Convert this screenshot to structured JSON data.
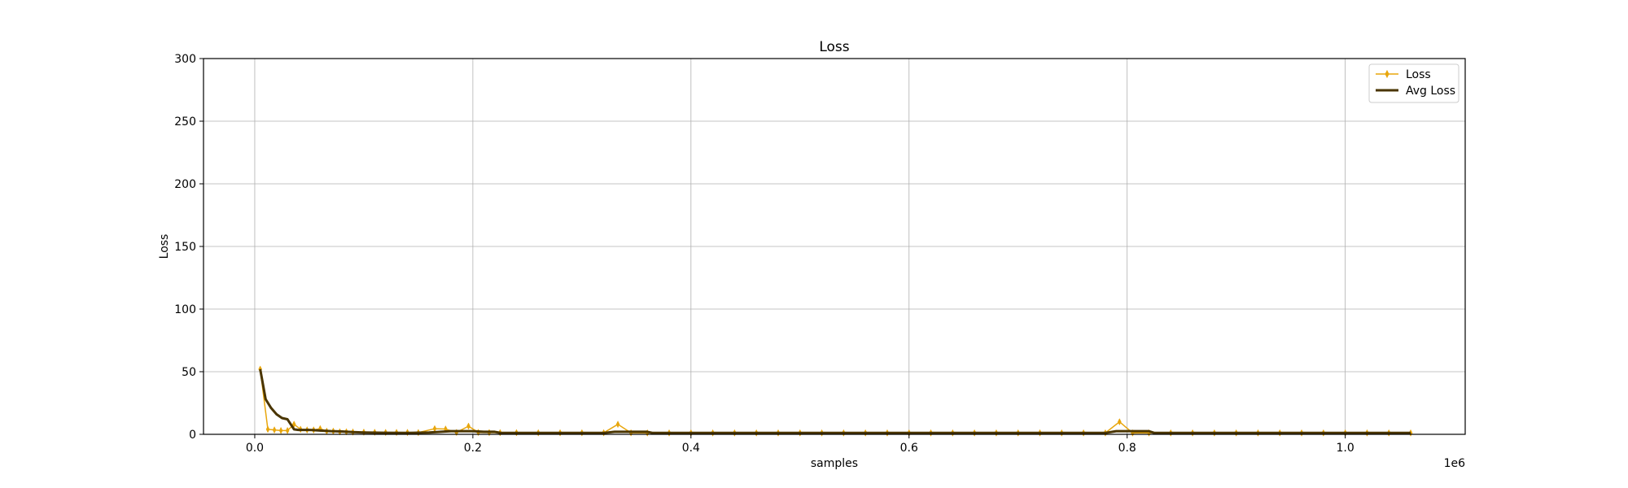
{
  "chart_data": {
    "type": "line",
    "title": "Loss",
    "xlabel": "samples",
    "ylabel": "Loss",
    "x_offset_label": "1e6",
    "xlim": [
      -0.047,
      1.11
    ],
    "ylim": [
      0,
      300
    ],
    "x_ticks": [
      0.0,
      0.2,
      0.4,
      0.6,
      0.8,
      1.0
    ],
    "x_tick_labels": [
      "0.0",
      "0.2",
      "0.4",
      "0.6",
      "0.8",
      "1.0"
    ],
    "y_ticks": [
      0,
      50,
      100,
      150,
      200,
      250,
      300
    ],
    "y_tick_labels": [
      "0",
      "50",
      "100",
      "150",
      "200",
      "250",
      "300"
    ],
    "grid": true,
    "legend_position": "top-right",
    "legend": [
      "Loss",
      "Avg Loss"
    ],
    "colors": {
      "Loss": "#e8a60c",
      "Avg Loss": "#4a3500"
    },
    "series": [
      {
        "name": "Loss",
        "marker": "thin-diamond",
        "x": [
          0.005,
          0.012,
          0.018,
          0.024,
          0.03,
          0.036,
          0.042,
          0.048,
          0.054,
          0.06,
          0.066,
          0.072,
          0.078,
          0.084,
          0.09,
          0.1,
          0.11,
          0.12,
          0.13,
          0.14,
          0.15,
          0.165,
          0.175,
          0.185,
          0.196,
          0.205,
          0.215,
          0.225,
          0.24,
          0.26,
          0.28,
          0.3,
          0.32,
          0.333,
          0.345,
          0.36,
          0.38,
          0.4,
          0.42,
          0.44,
          0.46,
          0.48,
          0.5,
          0.52,
          0.54,
          0.56,
          0.58,
          0.6,
          0.62,
          0.64,
          0.66,
          0.68,
          0.7,
          0.72,
          0.74,
          0.76,
          0.78,
          0.793,
          0.805,
          0.82,
          0.84,
          0.86,
          0.88,
          0.9,
          0.92,
          0.94,
          0.96,
          0.98,
          1.0,
          1.02,
          1.04,
          1.06
        ],
        "values": [
          52,
          4,
          3.5,
          3,
          3,
          8,
          4,
          3.5,
          3.5,
          4.5,
          2.5,
          2.5,
          2,
          2,
          1.8,
          1.7,
          1.6,
          1.5,
          1.5,
          1.5,
          1.4,
          4.5,
          4.2,
          1.5,
          6.5,
          1.5,
          1.4,
          1.3,
          1.3,
          1.2,
          1.2,
          1.2,
          1.2,
          8,
          1.2,
          1.1,
          1.1,
          1.1,
          1.1,
          1.1,
          1.1,
          1.1,
          1.1,
          1.1,
          1.1,
          1.1,
          1.1,
          1.1,
          1.1,
          1.1,
          1.1,
          1.1,
          1.1,
          1.1,
          1.1,
          1.1,
          1.1,
          10,
          1.1,
          1.1,
          1.1,
          1.1,
          1.1,
          1.1,
          1.1,
          1.1,
          1.1,
          1.1,
          1.1,
          1.1,
          1.1,
          1.1
        ]
      },
      {
        "name": "Avg Loss",
        "x": [
          0.005,
          0.01,
          0.015,
          0.02,
          0.025,
          0.03,
          0.036,
          0.04,
          0.05,
          0.06,
          0.07,
          0.08,
          0.09,
          0.1,
          0.12,
          0.14,
          0.16,
          0.18,
          0.2,
          0.21,
          0.22,
          0.225,
          0.24,
          0.26,
          0.28,
          0.3,
          0.32,
          0.33,
          0.34,
          0.36,
          0.365,
          0.38,
          0.4,
          0.5,
          0.6,
          0.7,
          0.78,
          0.79,
          0.8,
          0.81,
          0.82,
          0.825,
          0.85,
          0.9,
          1.0,
          1.06
        ],
        "values": [
          52,
          28,
          21,
          16,
          13,
          12,
          4,
          3.5,
          3.5,
          3,
          2.5,
          2.3,
          1.8,
          1.5,
          1.2,
          1.1,
          1.5,
          2.5,
          2.5,
          2,
          2,
          1.2,
          1.1,
          1.1,
          1.1,
          1.1,
          1.1,
          2,
          2,
          2,
          1.1,
          1.1,
          1.1,
          1.1,
          1.1,
          1.1,
          1.1,
          2.5,
          2.5,
          2.5,
          2.5,
          1.1,
          1.1,
          1.1,
          1.1,
          1.1
        ]
      }
    ]
  }
}
